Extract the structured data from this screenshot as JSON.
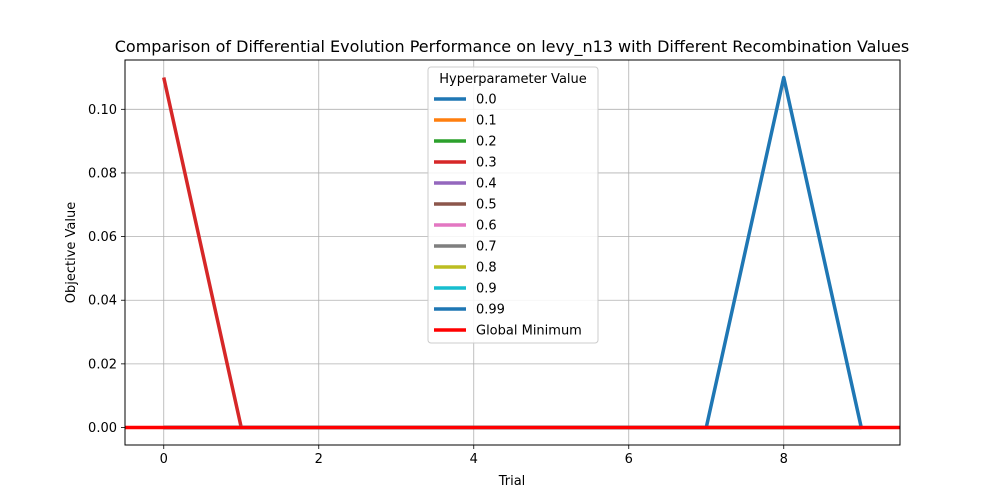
{
  "chart_data": {
    "type": "line",
    "title": "Comparison of Differential Evolution Performance on levy_n13 with Different Recombination Values",
    "xlabel": "Trial",
    "ylabel": "Objective Value",
    "xlim": [
      -0.5,
      9.5
    ],
    "ylim": [
      -0.0055,
      0.1155
    ],
    "xticks": [
      0,
      2,
      4,
      6,
      8
    ],
    "xtick_labels": [
      "0",
      "2",
      "4",
      "6",
      "8"
    ],
    "yticks": [
      0.0,
      0.02,
      0.04,
      0.06,
      0.08,
      0.1
    ],
    "ytick_labels": [
      "0.00",
      "0.02",
      "0.04",
      "0.06",
      "0.08",
      "0.10"
    ],
    "grid": true,
    "legend_title": "Hyperparameter Value",
    "legend_position": "top-center",
    "x": [
      0,
      1,
      2,
      3,
      4,
      5,
      6,
      7,
      8,
      9
    ],
    "series": [
      {
        "name": "0.0",
        "color": "#1f77b4",
        "values": [
          0,
          0,
          0,
          0,
          0,
          0,
          0,
          0,
          0,
          0
        ]
      },
      {
        "name": "0.1",
        "color": "#ff7f0e",
        "values": [
          0,
          0,
          0,
          0,
          0,
          0,
          0,
          0,
          0,
          0
        ]
      },
      {
        "name": "0.2",
        "color": "#2ca02c",
        "values": [
          0,
          0,
          0,
          0,
          0,
          0,
          0,
          0,
          0,
          0
        ]
      },
      {
        "name": "0.3",
        "color": "#d62728",
        "values": [
          0.11,
          0,
          0,
          0,
          0,
          0,
          0,
          0,
          0,
          0
        ]
      },
      {
        "name": "0.4",
        "color": "#9467bd",
        "values": [
          0,
          0,
          0,
          0,
          0,
          0,
          0,
          0,
          0,
          0
        ]
      },
      {
        "name": "0.5",
        "color": "#8c564b",
        "values": [
          0,
          0,
          0,
          0,
          0,
          0,
          0,
          0,
          0,
          0
        ]
      },
      {
        "name": "0.6",
        "color": "#e377c2",
        "values": [
          0,
          0,
          0,
          0,
          0,
          0,
          0,
          0,
          0,
          0
        ]
      },
      {
        "name": "0.7",
        "color": "#7f7f7f",
        "values": [
          0,
          0,
          0,
          0,
          0,
          0,
          0,
          0,
          0,
          0
        ]
      },
      {
        "name": "0.8",
        "color": "#bcbd22",
        "values": [
          0,
          0,
          0,
          0,
          0,
          0,
          0,
          0,
          0,
          0
        ]
      },
      {
        "name": "0.9",
        "color": "#17becf",
        "values": [
          0,
          0,
          0,
          0,
          0,
          0,
          0,
          0,
          0,
          0
        ]
      },
      {
        "name": "0.99",
        "color": "#1f77b4",
        "values": [
          0,
          0,
          0,
          0,
          0,
          0,
          0,
          0,
          0.11,
          0
        ]
      }
    ],
    "reference_line": {
      "name": "Global Minimum",
      "color": "#ff0000",
      "y": 0.0
    }
  }
}
